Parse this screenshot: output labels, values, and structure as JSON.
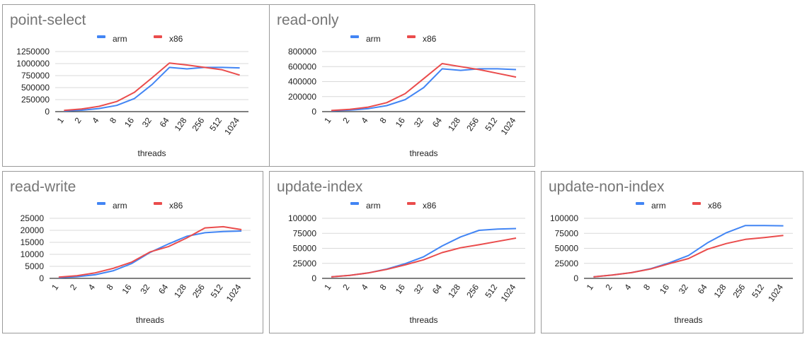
{
  "colors": {
    "arm": "#4285f4",
    "x86": "#ea4c4c",
    "grid": "#d9d9d9",
    "axis": "#333333"
  },
  "chart_data": [
    {
      "type": "line",
      "title": "point-select",
      "xlabel": "threads",
      "ylabel": "",
      "categories": [
        "1",
        "2",
        "4",
        "8",
        "16",
        "32",
        "64",
        "128",
        "256",
        "512",
        "1024"
      ],
      "ylim": [
        0,
        1250000
      ],
      "yticks": [
        0,
        250000,
        500000,
        750000,
        1000000,
        1250000
      ],
      "ytick_labels": [
        "0",
        "250000",
        "500000",
        "750000",
        "1000000",
        "1250000"
      ],
      "legend_position": "top",
      "series": [
        {
          "name": "arm",
          "values": [
            15000,
            30000,
            65000,
            130000,
            270000,
            560000,
            920000,
            890000,
            920000,
            920000,
            910000
          ]
        },
        {
          "name": "x86",
          "values": [
            25000,
            55000,
            110000,
            210000,
            400000,
            700000,
            1010000,
            970000,
            920000,
            870000,
            760000
          ]
        }
      ]
    },
    {
      "type": "line",
      "title": "read-only",
      "xlabel": "threads",
      "ylabel": "",
      "categories": [
        "1",
        "2",
        "4",
        "8",
        "16",
        "32",
        "64",
        "128",
        "256",
        "512",
        "1024"
      ],
      "ylim": [
        0,
        800000
      ],
      "yticks": [
        0,
        200000,
        400000,
        600000,
        800000
      ],
      "ytick_labels": [
        "0",
        "200000",
        "400000",
        "600000",
        "800000"
      ],
      "legend_position": "top",
      "series": [
        {
          "name": "arm",
          "values": [
            10000,
            20000,
            40000,
            80000,
            160000,
            320000,
            570000,
            550000,
            570000,
            570000,
            560000
          ]
        },
        {
          "name": "x86",
          "values": [
            15000,
            30000,
            60000,
            120000,
            240000,
            440000,
            640000,
            600000,
            560000,
            510000,
            460000
          ]
        }
      ]
    },
    {
      "type": "line",
      "title": "read-write",
      "xlabel": "threads",
      "ylabel": "",
      "categories": [
        "1",
        "2",
        "4",
        "8",
        "16",
        "32",
        "64",
        "128",
        "256",
        "512",
        "1024"
      ],
      "ylim": [
        0,
        25000
      ],
      "yticks": [
        0,
        5000,
        10000,
        15000,
        20000,
        25000
      ],
      "ytick_labels": [
        "0",
        "5000",
        "10000",
        "15000",
        "20000",
        "25000"
      ],
      "legend_position": "top",
      "series": [
        {
          "name": "arm",
          "values": [
            300,
            700,
            1500,
            3200,
            6200,
            10800,
            14300,
            17500,
            19000,
            19500,
            19700
          ]
        },
        {
          "name": "x86",
          "values": [
            500,
            1100,
            2300,
            4200,
            6800,
            11000,
            13200,
            16800,
            21000,
            21500,
            20300
          ]
        }
      ]
    },
    {
      "type": "line",
      "title": "update-index",
      "xlabel": "threads",
      "ylabel": "",
      "categories": [
        "1",
        "2",
        "4",
        "8",
        "16",
        "32",
        "64",
        "128",
        "256",
        "512",
        "1024"
      ],
      "ylim": [
        0,
        100000
      ],
      "yticks": [
        0,
        25000,
        50000,
        75000,
        100000
      ],
      "ytick_labels": [
        "0",
        "25000",
        "50000",
        "75000",
        "100000"
      ],
      "legend_position": "top",
      "series": [
        {
          "name": "arm",
          "values": [
            2500,
            5000,
            9000,
            15500,
            24500,
            36000,
            54000,
            69000,
            80000,
            82000,
            83000
          ]
        },
        {
          "name": "x86",
          "values": [
            2500,
            5000,
            9000,
            15000,
            22500,
            31000,
            43000,
            51000,
            56000,
            61500,
            67000
          ]
        }
      ]
    },
    {
      "type": "line",
      "title": "update-non-index",
      "xlabel": "threads",
      "ylabel": "",
      "categories": [
        "1",
        "2",
        "4",
        "8",
        "16",
        "32",
        "64",
        "128",
        "256",
        "512",
        "1024"
      ],
      "ylim": [
        0,
        100000
      ],
      "yticks": [
        0,
        25000,
        50000,
        75000,
        100000
      ],
      "ytick_labels": [
        "0",
        "25000",
        "50000",
        "75000",
        "100000"
      ],
      "legend_position": "top",
      "series": [
        {
          "name": "arm",
          "values": [
            2500,
            5500,
            9500,
            16000,
            26000,
            38000,
            59000,
            76000,
            88000,
            88000,
            87500
          ]
        },
        {
          "name": "x86",
          "values": [
            2500,
            5500,
            9500,
            15500,
            24500,
            33000,
            48500,
            58000,
            65000,
            68000,
            71500
          ]
        }
      ]
    }
  ]
}
